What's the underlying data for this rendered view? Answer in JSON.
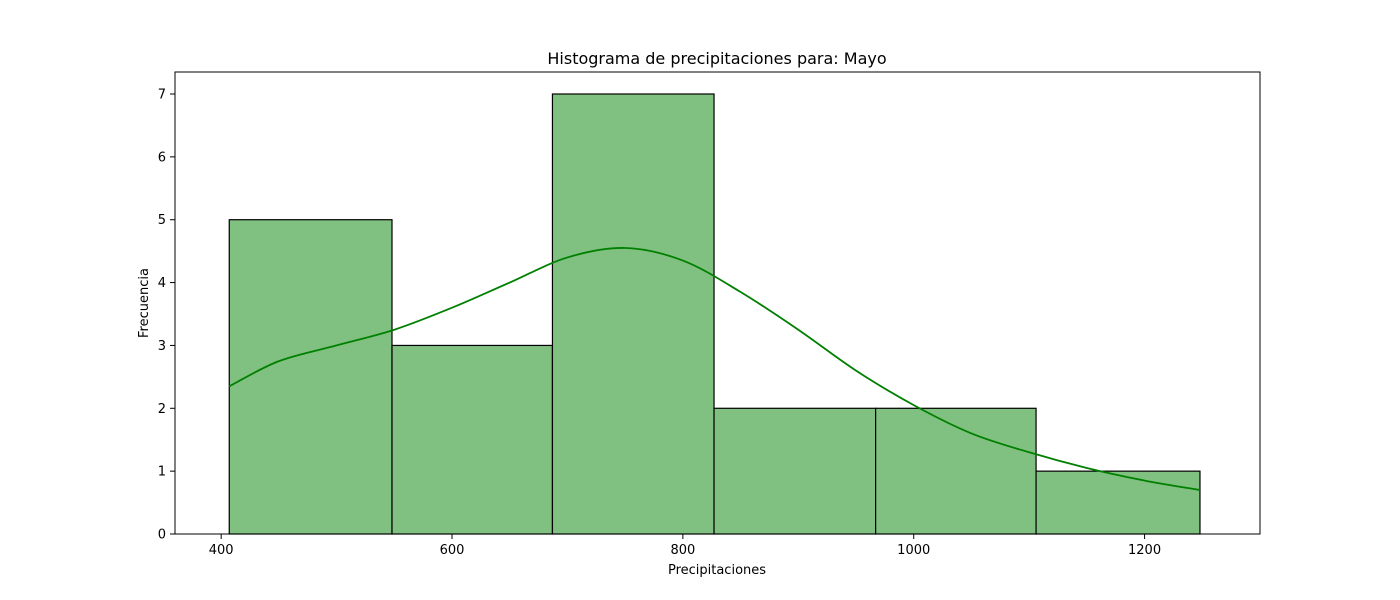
{
  "chart_data": {
    "type": "bar",
    "subtype": "histogram",
    "title": "Histograma de precipitaciones para: Mayo",
    "xlabel": "Precipitaciones",
    "ylabel": "Frecuencia",
    "bin_edges": [
      407,
      548,
      687,
      827,
      967,
      1106,
      1248
    ],
    "values": [
      5,
      3,
      7,
      2,
      2,
      1
    ],
    "xlim": [
      360,
      1300
    ],
    "ylim": [
      0,
      7.35
    ],
    "xticks": [
      400,
      600,
      800,
      1000,
      1200
    ],
    "yticks": [
      0,
      1,
      2,
      3,
      4,
      5,
      6,
      7
    ],
    "kde_line": {
      "x": [
        407,
        450,
        500,
        550,
        600,
        650,
        700,
        750,
        800,
        850,
        900,
        950,
        1000,
        1050,
        1100,
        1150,
        1200,
        1248
      ],
      "y": [
        2.35,
        2.75,
        3.0,
        3.25,
        3.6,
        4.0,
        4.4,
        4.55,
        4.35,
        3.85,
        3.25,
        2.6,
        2.05,
        1.6,
        1.3,
        1.05,
        0.85,
        0.7
      ]
    },
    "grid": false,
    "colors": {
      "bar_fill": "#80c080",
      "bar_edge": "#000000",
      "kde_line": "#008000"
    }
  }
}
